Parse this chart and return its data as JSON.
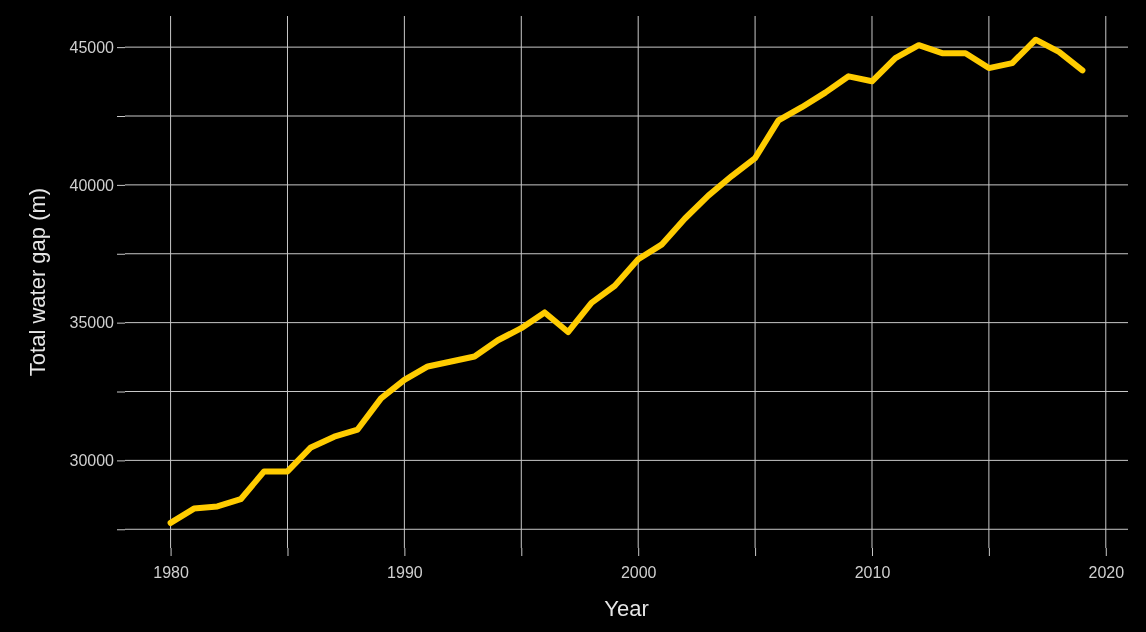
{
  "chart_data": {
    "type": "line",
    "xlabel": "Year",
    "ylabel": "Total water gap (m)",
    "x": [
      1980,
      1981,
      1982,
      1983,
      1984,
      1985,
      1986,
      1987,
      1988,
      1989,
      1990,
      1991,
      1992,
      1993,
      1994,
      1995,
      1996,
      1997,
      1998,
      1999,
      2000,
      2001,
      2002,
      2003,
      2004,
      2005,
      2006,
      2007,
      2008,
      2009,
      2010,
      2011,
      2012,
      2013,
      2014,
      2015,
      2016,
      2017,
      2018,
      2019
    ],
    "series": [
      {
        "color": "#ffcc00",
        "values": [
          27730,
          28250,
          28330,
          28590,
          29600,
          29600,
          30470,
          30860,
          31120,
          32250,
          32920,
          33410,
          33590,
          33770,
          34360,
          34800,
          35370,
          34660,
          35720,
          36340,
          37300,
          37830,
          38780,
          39610,
          40320,
          40970,
          42340,
          42820,
          43350,
          43940,
          43760,
          44600,
          45070,
          44780,
          44780,
          44240,
          44420,
          45270,
          44830,
          44160
        ]
      }
    ],
    "xlim": [
      1978.05,
      2020.95
    ],
    "xticks": [
      1980,
      {
        "value": 1985,
        "label": null
      },
      1990,
      {
        "value": 1995,
        "label": null
      },
      2000,
      {
        "value": 2005,
        "label": null
      },
      2010,
      {
        "value": 2015,
        "label": null
      },
      2020
    ],
    "ylim": [
      26820,
      46130
    ],
    "yticks": [
      {
        "value": 27500,
        "label": null
      },
      30000,
      {
        "value": 32500,
        "label": null
      },
      35000,
      {
        "value": 37500,
        "label": null
      },
      40000,
      {
        "value": 42500,
        "label": null
      },
      45000
    ],
    "grid": true,
    "marker": "none",
    "line_style": "solid"
  }
}
